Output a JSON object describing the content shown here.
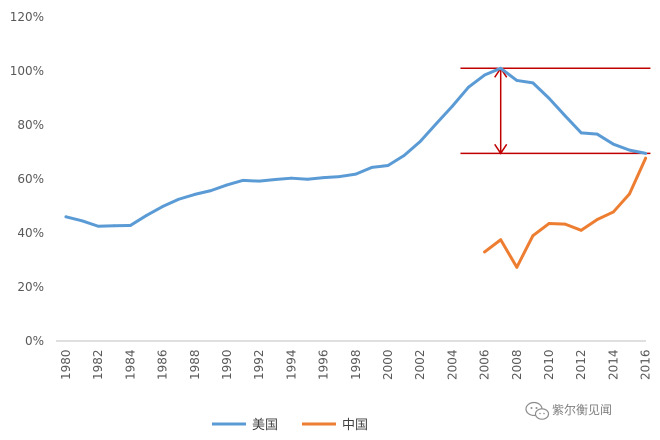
{
  "chart_data": {
    "type": "line",
    "x": [
      1980,
      1981,
      1982,
      1983,
      1984,
      1985,
      1986,
      1987,
      1988,
      1989,
      1990,
      1991,
      1992,
      1993,
      1994,
      1995,
      1996,
      1997,
      1998,
      1999,
      2000,
      2001,
      2002,
      2003,
      2004,
      2005,
      2006,
      2007,
      2008,
      2009,
      2010,
      2011,
      2012,
      2013,
      2014,
      2015,
      2016
    ],
    "x_ticks": [
      "1980",
      "1982",
      "1984",
      "1986",
      "1988",
      "1990",
      "1992",
      "1994",
      "1996",
      "1998",
      "2000",
      "2002",
      "2004",
      "2006",
      "2008",
      "2010",
      "2012",
      "2014",
      "2016"
    ],
    "y_ticks": [
      "0%",
      "20%",
      "40%",
      "60%",
      "80%",
      "100%",
      "120%"
    ],
    "ylim": [
      0,
      120
    ],
    "grid": false,
    "legend_position": "bottom-left",
    "series": [
      {
        "name": "美国",
        "color": "#5B9BD5",
        "values": [
          46.0,
          44.5,
          42.5,
          42.7,
          42.8,
          46.5,
          49.8,
          52.5,
          54.3,
          55.7,
          57.8,
          59.5,
          59.2,
          59.8,
          60.3,
          59.9,
          60.5,
          60.9,
          61.8,
          64.3,
          65.0,
          68.7,
          73.9,
          80.5,
          87.0,
          94.0,
          98.5,
          101.0,
          96.5,
          95.6,
          89.9,
          83.4,
          77.1,
          76.6,
          72.9,
          70.7,
          69.5
        ]
      },
      {
        "name": "中国",
        "color": "#ED7D31",
        "values": [
          null,
          null,
          null,
          null,
          null,
          null,
          null,
          null,
          null,
          null,
          null,
          null,
          null,
          null,
          null,
          null,
          null,
          null,
          null,
          null,
          null,
          null,
          null,
          null,
          null,
          null,
          33.0,
          37.5,
          27.3,
          39.0,
          43.5,
          43.3,
          41.0,
          45.0,
          47.8,
          54.5,
          67.7
        ]
      }
    ],
    "annotation": {
      "color": "#C00000",
      "upper_y": 101.0,
      "lower_y": 69.5,
      "from_x": 2004.5,
      "to_x": 2016.3,
      "arrow_x": 2007
    }
  },
  "watermark": {
    "icon": "wechat-icon",
    "text": "紫尔衡见闻"
  }
}
